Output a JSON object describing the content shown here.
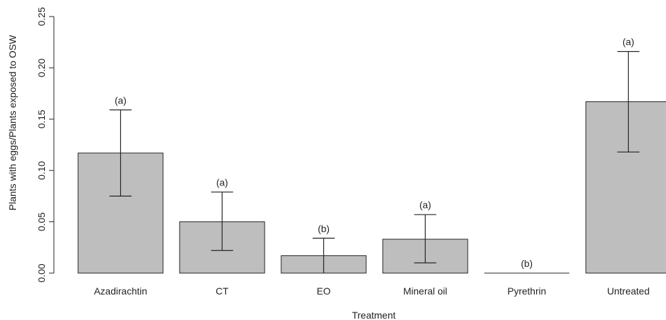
{
  "chart_data": {
    "type": "bar",
    "title": "",
    "xlabel": "Treatment",
    "ylabel": "Plants with eggs/Plants exposed to OSW",
    "ylim": [
      0,
      0.25
    ],
    "yticks": [
      "0.00",
      "0.05",
      "0.10",
      "0.15",
      "0.20",
      "0.25"
    ],
    "categories": [
      "Azadirachtin",
      "CT",
      "EO",
      "Mineral oil",
      "Pyrethrin",
      "Untreated"
    ],
    "values": [
      0.117,
      0.05,
      0.017,
      0.033,
      0.0,
      0.167
    ],
    "err_low": [
      0.075,
      0.022,
      0.0,
      0.01,
      0.0,
      0.118
    ],
    "err_high": [
      0.159,
      0.079,
      0.034,
      0.057,
      0.0,
      0.216
    ],
    "significance": [
      "(a)",
      "(a)",
      "(b)",
      "(a)",
      "(b)",
      "(a)"
    ],
    "colors": {
      "bar": "#bebebe",
      "outline": "#222222"
    },
    "grid": false,
    "legend": "none"
  }
}
